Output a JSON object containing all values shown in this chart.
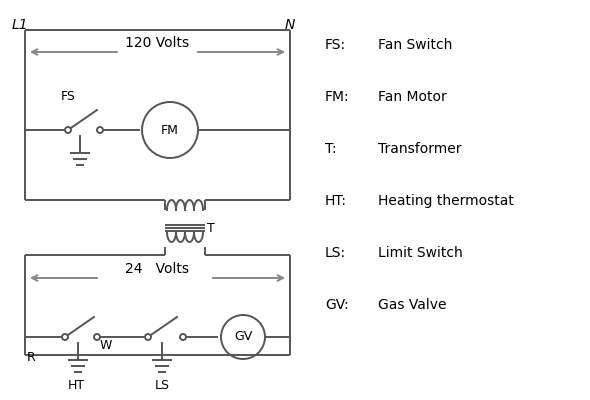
{
  "bg_color": "#ffffff",
  "line_color": "#555555",
  "arrow_color": "#888888",
  "text_color": "#000000",
  "legend_items": [
    [
      "FS:",
      "Fan Switch"
    ],
    [
      "FM:",
      "Fan Motor"
    ],
    [
      "T:",
      "Transformer"
    ],
    [
      "HT:",
      "Heating thermostat"
    ],
    [
      "LS:",
      "Limit Switch"
    ],
    [
      "GV:",
      "Gas Valve"
    ]
  ]
}
